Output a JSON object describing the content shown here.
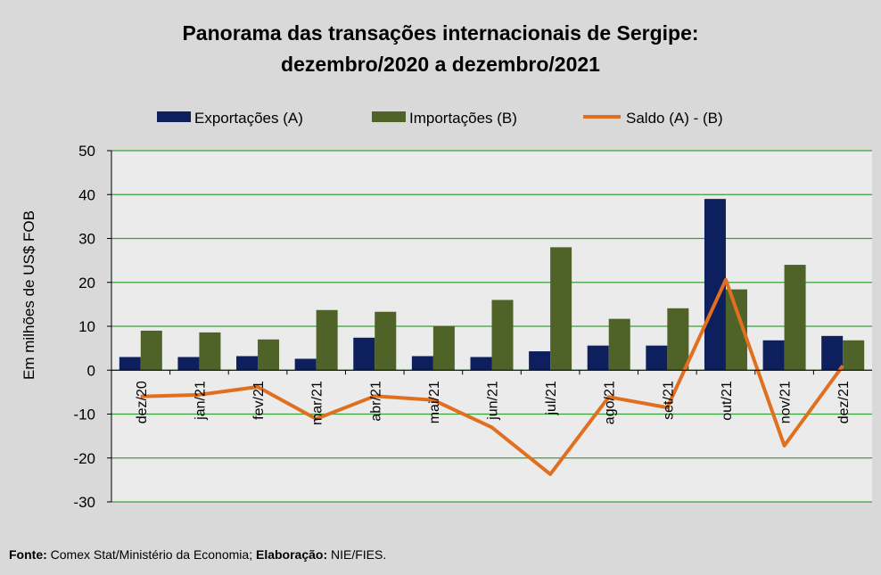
{
  "chart_data": {
    "type": "bar",
    "title_line1": "Panorama  das transações internacionais de Sergipe:",
    "title_line2": "dezembro/2020 a dezembro/2021",
    "ylabel": "Em milhões de US$ FOB",
    "ylim": [
      -30,
      50
    ],
    "yticks": [
      50,
      40,
      30,
      20,
      10,
      0,
      -10,
      -20,
      -30
    ],
    "grid": true,
    "legend_position": "top",
    "categories": [
      "dez/20",
      "jan/21",
      "fev/21",
      "mar/21",
      "abr/21",
      "mai/21",
      "jun/21",
      "jul/21",
      "ago/21",
      "set/21",
      "out/21",
      "nov/21",
      "dez/21"
    ],
    "series": [
      {
        "name": "Exportações (A)",
        "kind": "bar",
        "color": "#0d1f5c",
        "values": [
          3.0,
          3.0,
          3.2,
          2.6,
          7.4,
          3.2,
          3.0,
          4.3,
          5.6,
          5.6,
          39.0,
          6.8,
          7.8
        ]
      },
      {
        "name": "Importações (B)",
        "kind": "bar",
        "color": "#4f6228",
        "values": [
          9.0,
          8.6,
          7.0,
          13.7,
          13.3,
          10.0,
          16.0,
          28.0,
          11.7,
          14.1,
          18.4,
          24.0,
          6.8
        ]
      },
      {
        "name": "Saldo (A) - (B)",
        "kind": "line",
        "color": "#e07020",
        "values": [
          -6.0,
          -5.6,
          -3.8,
          -11.1,
          -5.9,
          -6.8,
          -13.0,
          -23.7,
          -6.1,
          -8.5,
          20.6,
          -17.2,
          1.0
        ]
      }
    ],
    "colors": {
      "background": "#d9d9d9",
      "plot_background": "#ebebeb",
      "grid": "#3aa03a"
    }
  },
  "footer": {
    "source_label": "Fonte:",
    "source_text": " Comex Stat/Ministério da Economia; ",
    "elab_label": "Elaboração:",
    "elab_text": " NIE/FIES."
  }
}
